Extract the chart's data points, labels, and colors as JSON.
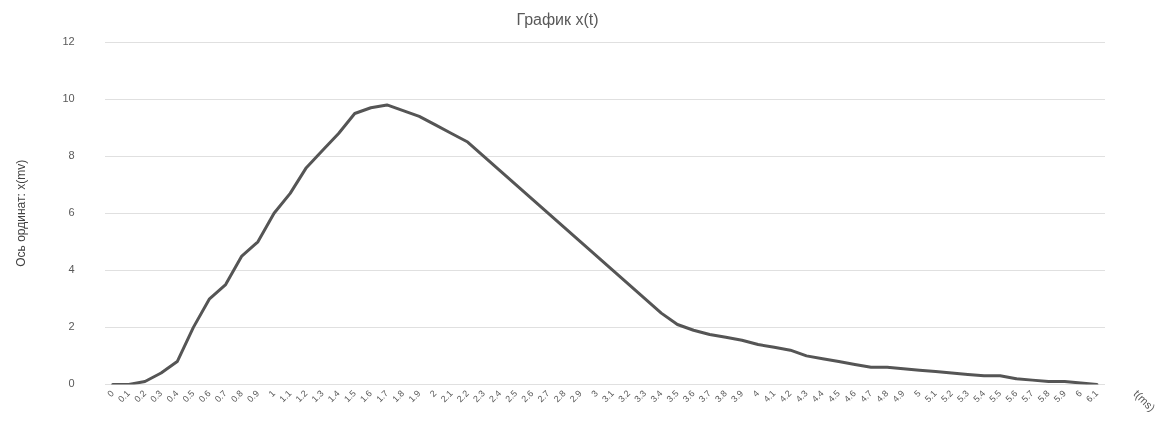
{
  "chart_data": {
    "type": "line",
    "title": "График x(t)",
    "xlabel": "t(ms)",
    "ylabel": "Ось ординат: x(mv)",
    "categories": [
      "0",
      "0.1",
      "0.2",
      "0.3",
      "0.4",
      "0.5",
      "0.6",
      "0.7",
      "0.8",
      "0.9",
      "1",
      "1.1",
      "1.2",
      "1.3",
      "1.4",
      "1.5",
      "1.6",
      "1.7",
      "1.8",
      "1.9",
      "2",
      "2.1",
      "2.2",
      "2.3",
      "2.4",
      "2.5",
      "2.6",
      "2.7",
      "2.8",
      "2.9",
      "3",
      "3.1",
      "3.2",
      "3.3",
      "3.4",
      "3.5",
      "3.6",
      "3.7",
      "3.8",
      "3.9",
      "4",
      "4.1",
      "4.2",
      "4.3",
      "4.4",
      "4.5",
      "4.6",
      "4.7",
      "4.8",
      "4.9",
      "5",
      "5.1",
      "5.2",
      "5.3",
      "5.4",
      "5.5",
      "5.6",
      "5.7",
      "5.8",
      "5.9",
      "6",
      "6.1"
    ],
    "series": [
      {
        "color": "#555555",
        "values": [
          0,
          0,
          0.1,
          0.4,
          0.8,
          2.0,
          3.0,
          3.5,
          4.5,
          5.0,
          6.0,
          6.7,
          7.6,
          8.2,
          8.8,
          9.5,
          9.7,
          9.8,
          9.6,
          9.4,
          9.1,
          8.8,
          8.5,
          8.0,
          7.5,
          7.0,
          6.5,
          6.0,
          5.5,
          5.0,
          4.5,
          4.0,
          3.5,
          3.0,
          2.5,
          2.1,
          1.9,
          1.75,
          1.65,
          1.55,
          1.4,
          1.3,
          1.2,
          1.0,
          0.9,
          0.8,
          0.7,
          0.6,
          0.6,
          0.55,
          0.5,
          0.45,
          0.4,
          0.35,
          0.3,
          0.3,
          0.2,
          0.15,
          0.1,
          0.1,
          0.05,
          0
        ]
      }
    ],
    "ylim": [
      0,
      12
    ],
    "yticks": [
      0,
      2,
      4,
      6,
      8,
      10,
      12
    ],
    "grid": "y",
    "legend": false,
    "marker": "none",
    "line_style": "solid"
  }
}
